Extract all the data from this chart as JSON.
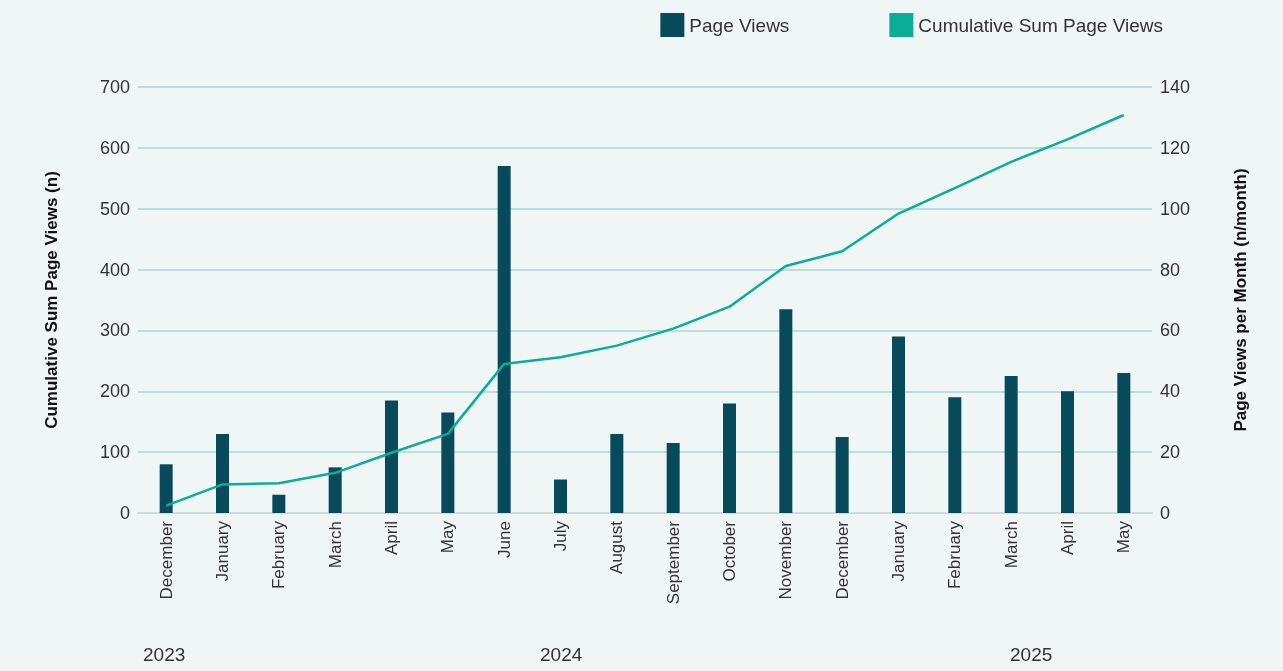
{
  "chart_data": {
    "type": "bar",
    "ylabel": "Cumulative Sum Page Views (n)",
    "y2label": "Page Views per Month (n/month)",
    "categories": [
      "December",
      "January",
      "February",
      "March",
      "April",
      "May",
      "June",
      "July",
      "August",
      "September",
      "October",
      "November",
      "December",
      "January",
      "February",
      "March",
      "April",
      "May"
    ],
    "series": [
      {
        "name": "Page Views",
        "axis": "y2",
        "color": "#074a5c",
        "values": [
          16,
          26,
          6,
          15,
          37,
          33,
          114,
          11,
          26,
          23,
          36,
          67,
          25,
          58,
          38,
          45,
          40,
          46
        ]
      },
      {
        "name": "Cumulative Sum Page Views",
        "type": "line",
        "color": "#0aae96",
        "values": [
          12,
          47,
          49,
          66,
          99,
          130,
          245,
          256,
          275,
          303,
          339,
          406,
          430,
          492,
          534,
          577,
          614,
          654
        ]
      }
    ],
    "ylim": [
      0,
      700
    ],
    "yticks": [
      0,
      100,
      200,
      300,
      400,
      500,
      600,
      700
    ],
    "y2lim": [
      0,
      140
    ],
    "y2ticks": [
      0,
      20,
      40,
      60,
      80,
      100,
      120,
      140
    ],
    "grid": "y",
    "legend": "top right",
    "marker": "none",
    "line_style": "solid",
    "annotations": [
      "2023",
      "2024",
      "2025"
    ]
  }
}
